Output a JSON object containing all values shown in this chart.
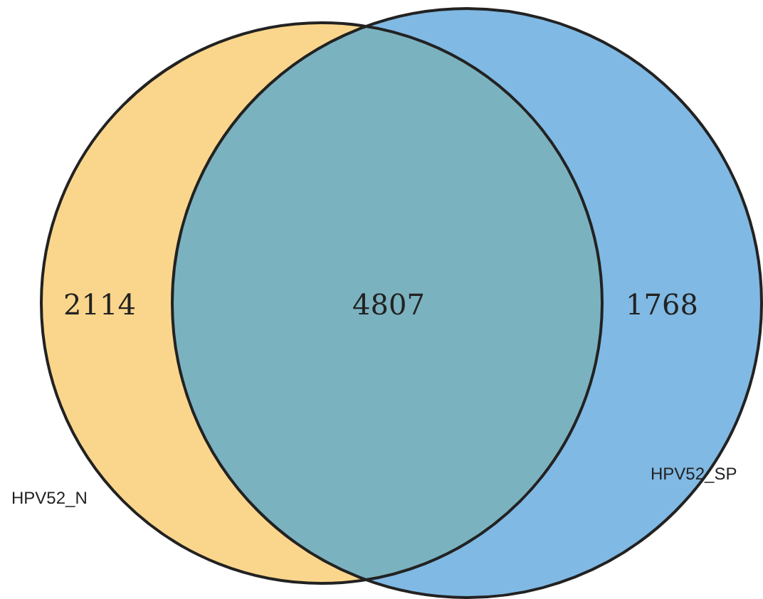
{
  "chart_data": {
    "type": "other",
    "categories": [
      "HPV52_N",
      null,
      "HPV52_SP"
    ],
    "values": [
      2114,
      4807,
      1768
    ],
    "colors": [
      "#fad68c",
      "#7bb2bf",
      "#80b9e3"
    ],
    "data_labels": true
  }
}
